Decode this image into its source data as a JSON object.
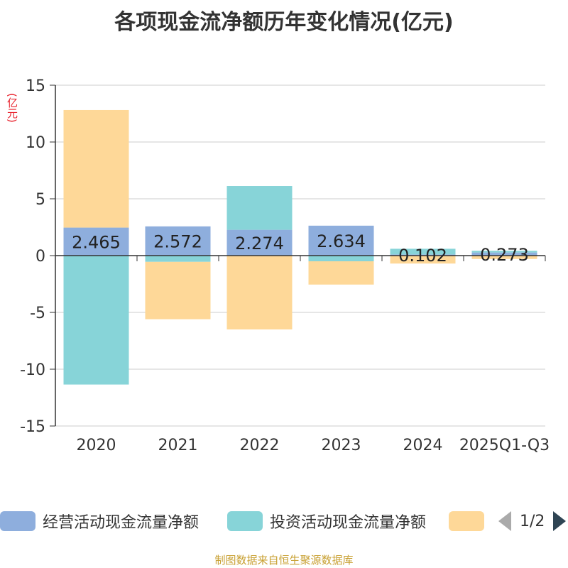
{
  "chart_data": {
    "type": "bar",
    "title": "各项现金流净额历年变化情况(亿元)",
    "ylabel": "(亿元)",
    "ylim": [
      -15,
      15
    ],
    "yticks": [
      15,
      10,
      5,
      0,
      -5,
      -10,
      -15
    ],
    "categories": [
      "2020",
      "2021",
      "2022",
      "2023",
      "2024",
      "2025Q1-Q3"
    ],
    "series": [
      {
        "name": "经营活动现金流量净额",
        "color": "#8eaedd",
        "values": [
          2.465,
          2.572,
          2.274,
          2.634,
          0.102,
          0.273
        ],
        "value_labels": [
          "2.465",
          "2.572",
          "2.274",
          "2.634",
          "0.102",
          "0.273"
        ]
      },
      {
        "name": "投资活动现金流量净额",
        "color": "#87d4d8",
        "values": [
          -11.35,
          -0.55,
          3.85,
          -0.5,
          0.5,
          0.15
        ]
      },
      {
        "name": "",
        "color": "#fed898",
        "values": [
          10.35,
          -5.05,
          -6.5,
          -2.05,
          -0.7,
          -0.3
        ]
      }
    ]
  },
  "legend": {
    "page": "1/2"
  },
  "source": "制图数据来自恒生聚源数据库"
}
